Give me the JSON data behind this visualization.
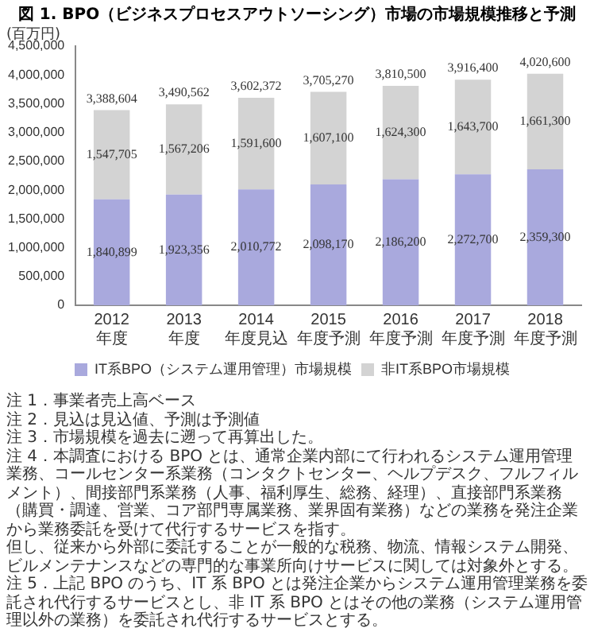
{
  "chart_data": {
    "type": "bar",
    "title": "図 1. BPO（ビジネスプロセスアウトソーシング）市場の市場規模推移と予測",
    "ylabel": "(百万円)",
    "categories": [
      "2012\n年度",
      "2013\n年度",
      "2014\n年度見込",
      "2015\n年度予測",
      "2016\n年度予測",
      "2017\n年度予測",
      "2018\n年度予測"
    ],
    "stacked": true,
    "series": [
      {
        "name": "IT系BPO（システム運用管理）市場規模",
        "color": "#a9a9dd",
        "values": [
          1840899,
          1923356,
          2010772,
          2098170,
          2186200,
          2272700,
          2359300
        ],
        "value_labels": [
          "1,840,899",
          "1,923,356",
          "2,010,772",
          "2,098,170",
          "2,186,200",
          "2,272,700",
          "2,359,300"
        ]
      },
      {
        "name": "非IT系BPO市場規模",
        "color": "#d3d3d3",
        "values": [
          1547705,
          1567206,
          1591600,
          1607100,
          1624300,
          1643700,
          1661300
        ],
        "value_labels": [
          "1,547,705",
          "1,567,206",
          "1,591,600",
          "1,607,100",
          "1,624,300",
          "1,643,700",
          "1,661,300"
        ]
      }
    ],
    "totals": [
      "3,388,604",
      "3,490,562",
      "3,602,372",
      "3,705,270",
      "3,810,500",
      "3,916,400",
      "4,020,600"
    ],
    "ylim": [
      0,
      4500000
    ],
    "yticks": [
      0,
      {
        "value": 500000,
        "label": "500,000"
      },
      {
        "value": 1000000,
        "label": "1,000,000"
      },
      {
        "value": 1500000,
        "label": "1,500,000"
      },
      {
        "value": 2000000,
        "label": "2,000,000"
      },
      {
        "value": 2500000,
        "label": "2,500,000"
      },
      {
        "value": 3000000,
        "label": "3,000,000"
      },
      {
        "value": 3500000,
        "label": "3,500,000"
      },
      {
        "value": 4000000,
        "label": "4,000,000"
      },
      {
        "value": 4500000,
        "label": "4,500,000"
      }
    ],
    "grid": false,
    "legend": "bottom",
    "annotations": [
      "注 1．事業者売上高ベース",
      "注 2．見込は見込値、予測は予測値",
      "注 3．市場規模を過去に遡って再算出した。",
      "注 4．本調査における BPO とは、通常企業内部にて行われるシステム運用管理業務、コールセンター系業務（コンタクトセンター、ヘルプデスク、フルフィルメント）、間接部門系業務（人事、福利厚生、総務、経理）、直接部門系業務（購買・調達、営業、コア部門専属業務、業界固有業務）などの業務を発注企業から業務委託を受けて代行するサービスを指す。",
      "但し、従来から外部に委託することが一般的な税務、物流、情報システム開発、ビルメンテナンスなどの専門的な事業所向けサービスに関しては対象外とする。",
      "注 5．上記 BPO のうち、IT 系 BPO とは発注企業からシステム運用管理業務を委託され代行するサービスとし、非 IT 系 BPO とはその他の業務（システム運用管理以外の業務）を委託され代行するサービスとする。"
    ]
  }
}
